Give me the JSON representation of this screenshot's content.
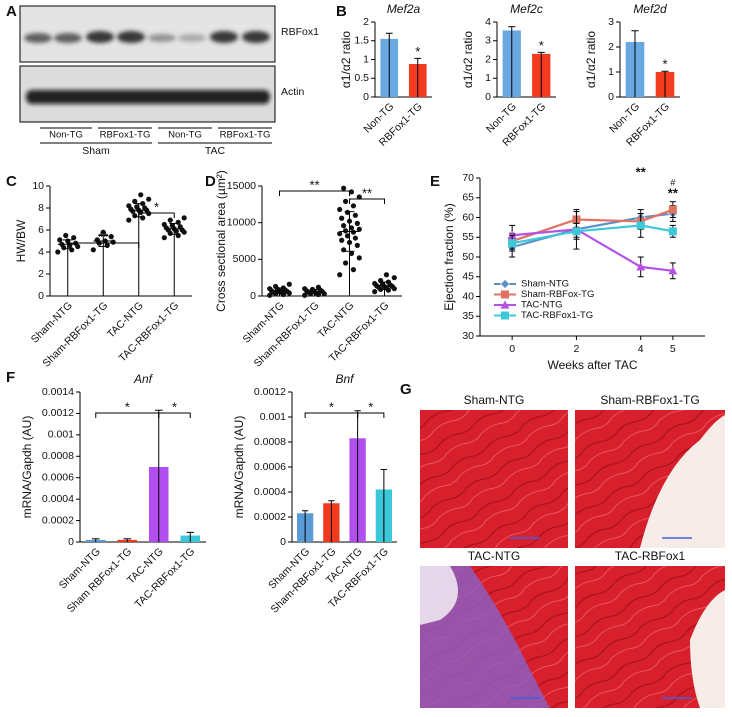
{
  "panel_labels": [
    "A",
    "B",
    "C",
    "D",
    "E",
    "F",
    "G"
  ],
  "blot": {
    "bands": [
      "RBFox1",
      "Actin"
    ],
    "lanes": [
      "Non-TG",
      "RBFox1-TG",
      "Non-TG",
      "RBFox1-TG"
    ],
    "groups": [
      "Sham",
      "TAC"
    ]
  },
  "histology": {
    "panels": [
      "Sham-NTG",
      "Sham-RBFox1-TG",
      "TAC-NTG",
      "TAC-RBFox1"
    ]
  },
  "chart_data": [
    {
      "type": "bar",
      "title": "Mef2a",
      "y_label": "α1/α2 ratio",
      "categories": [
        "Non-TG",
        "RBFox1-TG"
      ],
      "values": [
        1.55,
        0.88
      ],
      "errors": [
        0.15,
        0.15
      ],
      "colors": [
        "#6aa8e2",
        "#f23b1f"
      ],
      "ylim": [
        0,
        2
      ],
      "yticks": [
        0,
        0.5,
        1,
        1.5,
        2
      ],
      "annotations": [
        "*"
      ]
    },
    {
      "type": "bar",
      "title": "Mef2c",
      "y_label": "α1/α2 ratio",
      "categories": [
        "Non-TG",
        "RBFox1-TG"
      ],
      "values": [
        3.55,
        2.3
      ],
      "errors": [
        0.2,
        0.08
      ],
      "colors": [
        "#6aa8e2",
        "#f23b1f"
      ],
      "ylim": [
        0,
        4
      ],
      "yticks": [
        0,
        1,
        2,
        3,
        4
      ],
      "annotations": [
        "*"
      ]
    },
    {
      "type": "bar",
      "title": "Mef2d",
      "y_label": "α1/α2 ratio",
      "categories": [
        "Non-TG",
        "RBFox1-TG"
      ],
      "values": [
        2.2,
        1.0
      ],
      "errors": [
        0.45,
        0.03
      ],
      "colors": [
        "#6aa8e2",
        "#f23b1f"
      ],
      "ylim": [
        0,
        3
      ],
      "yticks": [
        0,
        1,
        2,
        3
      ],
      "annotations": [
        "*"
      ]
    },
    {
      "type": "dot",
      "y_label": "HW/BW",
      "categories": [
        "Sham-NTG",
        "Sham-RBFox1-TG",
        "TAC-NTG",
        "TAC-RBFox1-TG"
      ],
      "points": [
        [
          4.0,
          4.2,
          4.4,
          4.5,
          4.6,
          4.7,
          4.8,
          5.0,
          5.1,
          5.3,
          5.5
        ],
        [
          4.2,
          4.6,
          4.8,
          4.9,
          5.0,
          5.1,
          5.4,
          5.8
        ],
        [
          6.9,
          7.1,
          7.3,
          7.5,
          7.6,
          7.7,
          7.8,
          7.8,
          7.9,
          8.0,
          8.1,
          8.2,
          8.4,
          8.6,
          8.8,
          9.2
        ],
        [
          5.3,
          5.5,
          5.7,
          5.8,
          5.9,
          6.0,
          6.0,
          6.1,
          6.2,
          6.3,
          6.4,
          6.5,
          6.7,
          6.9,
          7.1
        ]
      ],
      "means": [
        4.7,
        5.0,
        7.8,
        6.1
      ],
      "errors": [
        0.4,
        0.5,
        0.6,
        0.5
      ],
      "ylim": [
        0,
        10
      ],
      "yticks": [
        0,
        2,
        4,
        6,
        8,
        10
      ],
      "annotations": [
        "**",
        "*"
      ]
    },
    {
      "type": "dot",
      "y_label": "Cross sectional area (µm²)",
      "categories": [
        "Sham-NTG",
        "Sham-RBFox1-TG",
        "TAC-NTG",
        "TAC-RBFox1-TG"
      ],
      "points": [
        [
          100,
          200,
          300,
          400,
          500,
          500,
          600,
          700,
          700,
          800,
          900,
          1000,
          1100,
          1300,
          1600
        ],
        [
          100,
          200,
          300,
          300,
          400,
          500,
          600,
          600,
          700,
          800,
          900,
          1000,
          1200
        ],
        [
          2900,
          3600,
          4500,
          5200,
          5800,
          6300,
          6900,
          7300,
          7600,
          7900,
          8200,
          8500,
          8700,
          8900,
          9100,
          9300,
          9600,
          9900,
          10200,
          10600,
          11000,
          11400,
          11800,
          12300,
          12900,
          13500,
          14200,
          14700
        ],
        [
          600,
          800,
          900,
          1000,
          1100,
          1200,
          1300,
          1300,
          1400,
          1500,
          1600,
          1700,
          1900,
          2100,
          2500,
          2900
        ]
      ],
      "means": [
        700,
        600,
        8800,
        1400
      ],
      "errors": [
        400,
        300,
        2700,
        500
      ],
      "ylim": [
        0,
        15000
      ],
      "yticks": [
        0,
        5000,
        10000,
        15000
      ],
      "annotations": [
        "**",
        "**"
      ]
    },
    {
      "type": "line",
      "x_label": "Weeks after TAC",
      "y_label": "Ejection fraction (%)",
      "x": [
        0,
        2,
        4,
        5
      ],
      "series": [
        {
          "name": "Sham-NTG",
          "color": "#5b8fc7",
          "marker": "diamond",
          "values": [
            52.5,
            57,
            60,
            61
          ],
          "errors": [
            2.5,
            2,
            2,
            2
          ]
        },
        {
          "name": "Sham-RBFox-TG",
          "color": "#e07262",
          "marker": "square",
          "values": [
            54,
            59.5,
            59,
            62
          ],
          "errors": [
            2,
            2,
            2,
            2
          ]
        },
        {
          "name": "TAC-NTG",
          "color": "#b552e6",
          "marker": "triangle",
          "values": [
            55.5,
            57,
            47.5,
            46.5
          ],
          "errors": [
            2.5,
            5,
            2.5,
            2
          ]
        },
        {
          "name": "TAC-RBFox1-TG",
          "color": "#3ec8d8",
          "marker": "square",
          "values": [
            53.5,
            56.5,
            58,
            56.5
          ],
          "errors": [
            2,
            2,
            3,
            1.5
          ]
        }
      ],
      "xlim": [
        -1,
        6
      ],
      "xticks": [
        0,
        2,
        4,
        5
      ],
      "ylim": [
        30,
        70
      ],
      "yticks": [
        30,
        35,
        40,
        45,
        50,
        55,
        60,
        65,
        70
      ],
      "legend": "lower-left",
      "annotations": [
        "**",
        "**",
        "#"
      ]
    },
    {
      "type": "bar",
      "title": "Anf",
      "y_label": "mRNA/Gapdh (AU)",
      "categories": [
        "Sham-NTG",
        "Sham RBFox1-TG",
        "TAC-NTG",
        "TAC-RBFox1-TG"
      ],
      "values": [
        2e-05,
        2e-05,
        0.0007,
        6e-05
      ],
      "errors": [
        1e-05,
        1e-05,
        0.00053,
        3e-05
      ],
      "colors": [
        "#5b9bd5",
        "#f03a1e",
        "#b04ef0",
        "#3cc8d8"
      ],
      "ylim": [
        0,
        0.0014
      ],
      "yticks": [
        0,
        0.0002,
        0.0004,
        0.0006,
        0.0008,
        0.001,
        0.0012,
        0.0014
      ],
      "annotations": [
        "*",
        "*"
      ]
    },
    {
      "type": "bar",
      "title": "Bnf",
      "y_label": "mRNA/Gapdh (AU)",
      "categories": [
        "Sham-NTG",
        "Sham-RBFox1-TG",
        "TAC-NTG",
        "TAC-RBFox1-TG"
      ],
      "values": [
        0.00023,
        0.00031,
        0.00083,
        0.00042
      ],
      "errors": [
        2e-05,
        2e-05,
        0.00022,
        0.00016
      ],
      "colors": [
        "#5b9bd5",
        "#f03a1e",
        "#b04ef0",
        "#3cc8d8"
      ],
      "ylim": [
        0,
        0.0012
      ],
      "yticks": [
        0,
        0.0002,
        0.0004,
        0.0006,
        0.0008,
        0.001,
        0.0012
      ],
      "annotations": [
        "*",
        "*"
      ]
    }
  ]
}
